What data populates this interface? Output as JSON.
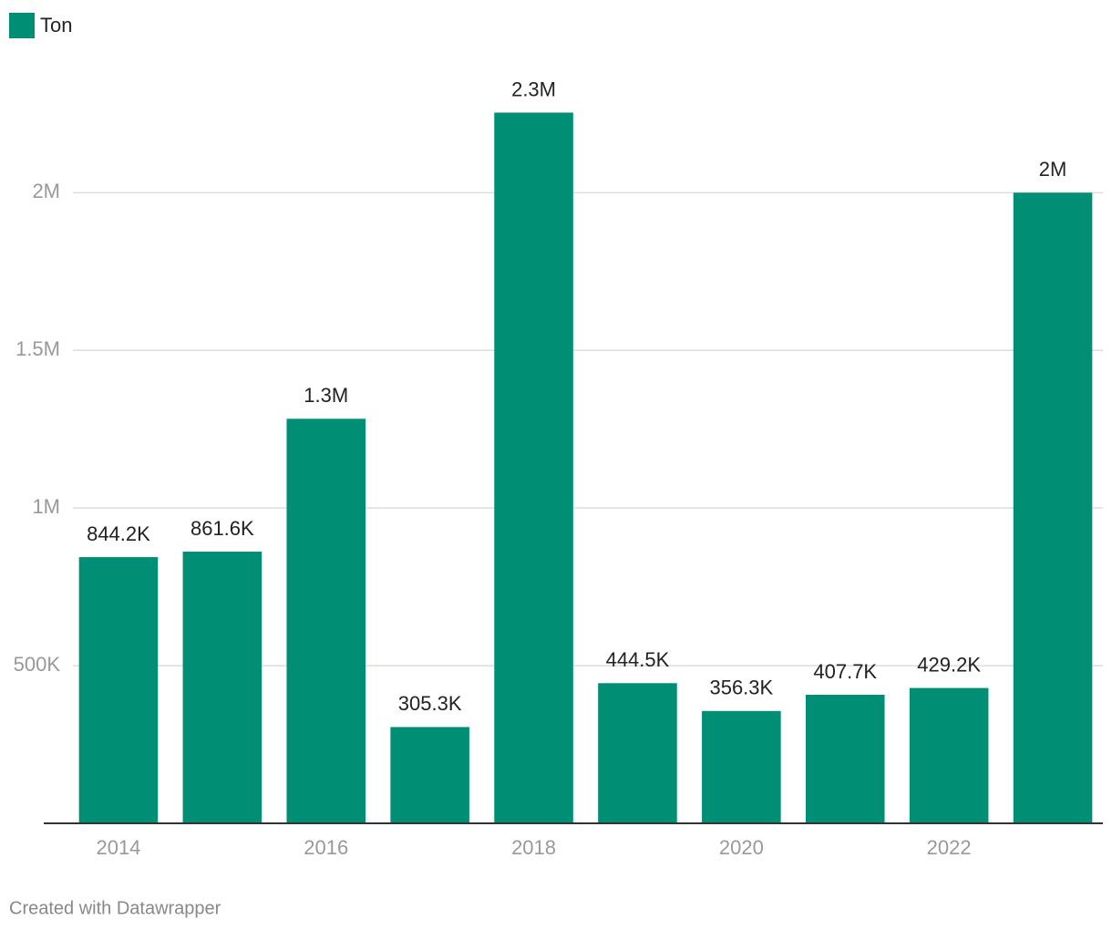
{
  "chart_data": {
    "type": "bar",
    "x": [
      2014,
      2015,
      2016,
      2017,
      2018,
      2019,
      2020,
      2021,
      2022,
      2023
    ],
    "xlim": [
      2013.5,
      2023.5
    ],
    "xticks": [
      2014,
      2016,
      2018,
      2020,
      2022
    ],
    "series": [
      {
        "name": "Ton",
        "color": "#008f74",
        "values": [
          844200,
          861600,
          1283000,
          305300,
          2254000,
          444500,
          356300,
          407700,
          429200,
          2000000
        ],
        "value_labels": [
          "844.2K",
          "861.6K",
          "1.3M",
          "305.3K",
          "2.3M",
          "444.5K",
          "356.3K",
          "407.7K",
          "429.2K",
          "2M"
        ]
      }
    ],
    "ylim": [
      0,
      2400000
    ],
    "yticks": [
      {
        "value": 500000,
        "label": "500K"
      },
      {
        "value": 1000000,
        "label": "1M"
      },
      {
        "value": 1500000,
        "label": "1.5M"
      },
      {
        "value": 2000000,
        "label": "2M"
      }
    ],
    "grid": true,
    "legend": "top-left",
    "footer": "Created with Datawrapper"
  }
}
